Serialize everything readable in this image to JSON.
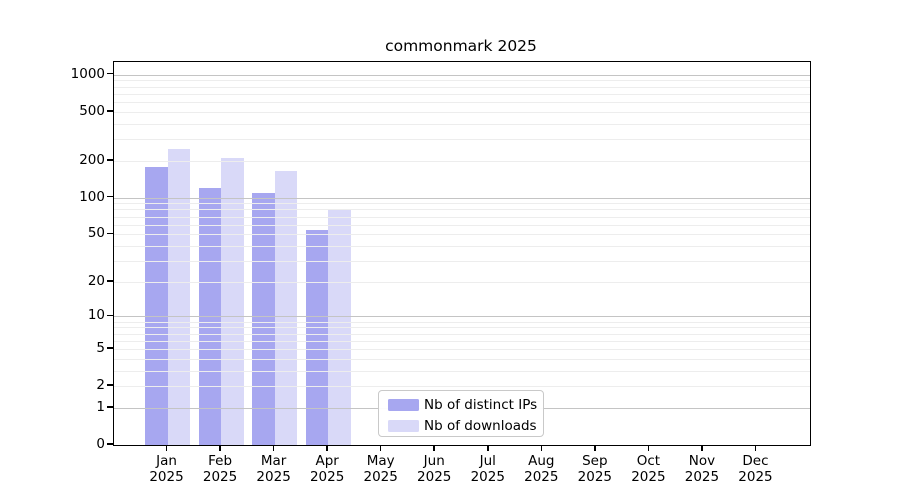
{
  "chart_data": {
    "type": "bar",
    "title": "commonmark 2025",
    "xlabel": "",
    "ylabel": "",
    "x_year": "2025",
    "x_months": [
      "Jan",
      "Feb",
      "Mar",
      "Apr",
      "May",
      "Jun",
      "Jul",
      "Aug",
      "Sep",
      "Oct",
      "Nov",
      "Dec"
    ],
    "series": [
      {
        "name": "Nb of distinct IPs",
        "color": "#a7a7f0",
        "values": [
          178,
          120,
          110,
          54,
          null,
          null,
          null,
          null,
          null,
          null,
          null,
          null
        ]
      },
      {
        "name": "Nb of downloads",
        "color": "#d9d9f8",
        "values": [
          250,
          210,
          165,
          80,
          null,
          null,
          null,
          null,
          null,
          null,
          null,
          null
        ]
      }
    ],
    "y_scale": "log10(1+v)",
    "ylim": [
      0,
      1270
    ],
    "y_tick_values": [
      0,
      1,
      2,
      5,
      10,
      20,
      50,
      100,
      200,
      500,
      1000
    ],
    "y_tick_labels": [
      "0",
      "1",
      "2",
      "5",
      "10",
      "20",
      "50",
      "100",
      "200",
      "500",
      "1000"
    ],
    "y_major_gridlines": [
      1,
      10,
      100,
      1000
    ],
    "y_minor_gridlines": [
      2,
      3,
      4,
      5,
      6,
      7,
      8,
      9,
      20,
      30,
      40,
      50,
      60,
      70,
      80,
      90,
      200,
      300,
      400,
      500,
      600,
      700,
      800,
      900
    ],
    "grid": true,
    "legend_position": "bottom-center-inside",
    "colors": {
      "axis": "#000000",
      "major_grid": "#c4c4c4",
      "minor_grid": "#ededed",
      "background": "#ffffff"
    }
  }
}
